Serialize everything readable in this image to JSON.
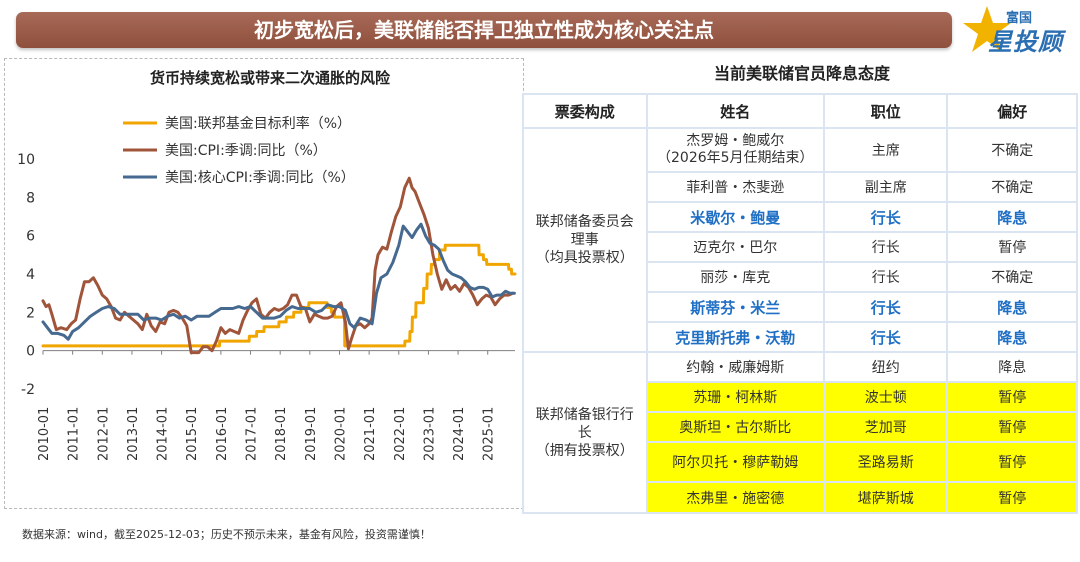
{
  "banner": {
    "title": "初步宽松后，美联储能否捍卫独立性成为核心关注点"
  },
  "logo": {
    "small": "富国",
    "big": "星投顾"
  },
  "chart_data": {
    "type": "line",
    "title": "货币持续宽松或带来二次通胀的风险",
    "xlabel": "",
    "ylabel": "",
    "ylim": [
      -2,
      10
    ],
    "yticks": [
      -2,
      0,
      2,
      4,
      6,
      8,
      10
    ],
    "xlim": [
      2010.0,
      2025.92
    ],
    "xticks": [
      "2010-01",
      "2011-01",
      "2012-01",
      "2013-01",
      "2014-01",
      "2015-01",
      "2016-01",
      "2017-01",
      "2018-01",
      "2019-01",
      "2020-01",
      "2021-01",
      "2022-01",
      "2023-01",
      "2024-01",
      "2025-01"
    ],
    "grid": false,
    "legend": "top-left",
    "series": [
      {
        "name": "美国:联邦基金目标利率（%）",
        "color": "#f0a500",
        "x": [
          2010.0,
          2015.95,
          2015.96,
          2016.95,
          2016.96,
          2017.2,
          2017.21,
          2017.45,
          2017.46,
          2017.95,
          2017.96,
          2018.2,
          2018.21,
          2018.45,
          2018.46,
          2018.7,
          2018.71,
          2018.96,
          2018.97,
          2019.58,
          2019.59,
          2019.72,
          2019.73,
          2019.83,
          2019.84,
          2020.17,
          2020.18,
          2022.2,
          2022.21,
          2022.37,
          2022.38,
          2022.45,
          2022.46,
          2022.57,
          2022.58,
          2022.83,
          2022.84,
          2022.95,
          2022.96,
          2023.09,
          2023.1,
          2023.2,
          2023.21,
          2023.37,
          2023.38,
          2023.56,
          2023.57,
          2024.7,
          2024.71,
          2024.85,
          2024.86,
          2024.96,
          2024.97,
          2025.7,
          2025.71,
          2025.8,
          2025.81,
          2025.92
        ],
        "y": [
          0.25,
          0.25,
          0.5,
          0.5,
          0.75,
          0.75,
          1.0,
          1.0,
          1.25,
          1.25,
          1.5,
          1.5,
          1.75,
          1.75,
          2.0,
          2.0,
          2.25,
          2.25,
          2.5,
          2.5,
          2.25,
          2.25,
          2.0,
          2.0,
          1.75,
          1.75,
          0.25,
          0.25,
          0.5,
          0.5,
          1.0,
          1.0,
          1.75,
          1.75,
          2.5,
          2.5,
          3.25,
          3.25,
          4.0,
          4.0,
          4.5,
          4.5,
          4.75,
          4.75,
          5.25,
          5.25,
          5.5,
          5.5,
          5.0,
          5.0,
          4.75,
          4.75,
          4.5,
          4.5,
          4.25,
          4.25,
          4.0,
          4.0
        ]
      },
      {
        "name": "美国:CPI:季调:同比（%）",
        "color": "#a0543a",
        "x": [
          2010.0,
          2010.1,
          2010.2,
          2010.3,
          2010.45,
          2010.6,
          2010.8,
          2010.95,
          2011.1,
          2011.25,
          2011.4,
          2011.55,
          2011.7,
          2011.85,
          2012.0,
          2012.15,
          2012.3,
          2012.45,
          2012.6,
          2012.75,
          2012.9,
          2013.05,
          2013.2,
          2013.35,
          2013.5,
          2013.65,
          2013.8,
          2013.95,
          2014.1,
          2014.25,
          2014.4,
          2014.55,
          2014.7,
          2014.85,
          2015.0,
          2015.1,
          2015.25,
          2015.4,
          2015.55,
          2015.7,
          2015.85,
          2016.0,
          2016.15,
          2016.3,
          2016.45,
          2016.6,
          2016.75,
          2016.9,
          2017.05,
          2017.2,
          2017.35,
          2017.5,
          2017.65,
          2017.8,
          2017.95,
          2018.1,
          2018.25,
          2018.4,
          2018.55,
          2018.7,
          2018.85,
          2019.0,
          2019.15,
          2019.3,
          2019.45,
          2019.6,
          2019.75,
          2019.9,
          2020.05,
          2020.2,
          2020.3,
          2020.4,
          2020.55,
          2020.7,
          2020.85,
          2021.0,
          2021.1,
          2021.2,
          2021.3,
          2021.45,
          2021.6,
          2021.75,
          2021.9,
          2022.05,
          2022.2,
          2022.35,
          2022.45,
          2022.55,
          2022.7,
          2022.85,
          2023.0,
          2023.15,
          2023.3,
          2023.45,
          2023.6,
          2023.75,
          2023.9,
          2024.05,
          2024.2,
          2024.35,
          2024.5,
          2024.65,
          2024.8,
          2024.95,
          2025.1,
          2025.25,
          2025.4,
          2025.55,
          2025.7,
          2025.85
        ],
        "y": [
          2.6,
          2.3,
          2.4,
          1.9,
          1.1,
          1.2,
          1.1,
          1.4,
          1.6,
          2.7,
          3.6,
          3.6,
          3.8,
          3.4,
          2.9,
          2.7,
          2.3,
          1.7,
          1.6,
          2.0,
          1.8,
          1.6,
          1.4,
          1.1,
          1.9,
          1.3,
          1.0,
          1.5,
          1.4,
          2.0,
          2.1,
          2.0,
          1.7,
          1.3,
          -0.1,
          -0.1,
          -0.1,
          0.2,
          0.2,
          0.0,
          0.5,
          1.2,
          0.9,
          1.1,
          1.0,
          0.9,
          1.6,
          2.1,
          2.5,
          2.7,
          1.9,
          1.7,
          2.0,
          2.2,
          2.1,
          2.2,
          2.4,
          2.9,
          2.9,
          2.3,
          2.2,
          1.5,
          1.9,
          1.8,
          1.7,
          1.7,
          1.8,
          2.3,
          2.5,
          1.5,
          0.1,
          0.6,
          1.3,
          1.4,
          1.2,
          1.4,
          1.7,
          4.2,
          5.0,
          5.4,
          5.3,
          6.2,
          7.0,
          7.5,
          8.5,
          9.0,
          8.5,
          8.3,
          7.7,
          7.1,
          6.4,
          5.0,
          4.0,
          3.2,
          3.7,
          3.2,
          3.4,
          3.1,
          3.5,
          3.3,
          2.9,
          2.4,
          2.7,
          2.9,
          2.8,
          2.4,
          2.7,
          2.9,
          2.9,
          3.0
        ]
      },
      {
        "name": "美国:核心CPI:季调:同比（%）",
        "color": "#466990",
        "x": [
          2010.0,
          2010.15,
          2010.3,
          2010.5,
          2010.7,
          2010.85,
          2011.0,
          2011.2,
          2011.4,
          2011.6,
          2011.8,
          2012.0,
          2012.2,
          2012.4,
          2012.6,
          2012.8,
          2013.0,
          2013.2,
          2013.4,
          2013.6,
          2013.8,
          2014.0,
          2014.2,
          2014.4,
          2014.6,
          2014.8,
          2015.0,
          2015.2,
          2015.4,
          2015.6,
          2015.8,
          2016.0,
          2016.2,
          2016.4,
          2016.6,
          2016.8,
          2017.0,
          2017.2,
          2017.4,
          2017.6,
          2017.8,
          2018.0,
          2018.2,
          2018.4,
          2018.6,
          2018.8,
          2019.0,
          2019.2,
          2019.4,
          2019.6,
          2019.8,
          2020.0,
          2020.2,
          2020.35,
          2020.5,
          2020.7,
          2020.9,
          2021.1,
          2021.25,
          2021.4,
          2021.6,
          2021.8,
          2022.0,
          2022.15,
          2022.3,
          2022.45,
          2022.6,
          2022.75,
          2022.9,
          2023.05,
          2023.2,
          2023.35,
          2023.5,
          2023.65,
          2023.8,
          2023.95,
          2024.1,
          2024.25,
          2024.4,
          2024.55,
          2024.7,
          2024.85,
          2025.0,
          2025.15,
          2025.3,
          2025.45,
          2025.6,
          2025.75,
          2025.9
        ],
        "y": [
          1.5,
          1.2,
          0.9,
          0.9,
          0.8,
          0.6,
          1.0,
          1.2,
          1.5,
          1.8,
          2.0,
          2.2,
          2.3,
          2.2,
          1.9,
          1.9,
          1.9,
          1.9,
          1.6,
          1.7,
          1.7,
          1.6,
          1.8,
          1.9,
          1.7,
          1.8,
          1.6,
          1.8,
          1.8,
          1.8,
          2.0,
          2.2,
          2.2,
          2.2,
          2.3,
          2.2,
          2.3,
          2.0,
          1.7,
          1.7,
          1.7,
          1.8,
          2.1,
          2.3,
          2.2,
          2.2,
          2.2,
          2.0,
          2.1,
          2.4,
          2.3,
          2.3,
          2.1,
          1.4,
          1.2,
          1.7,
          1.6,
          1.4,
          3.0,
          3.8,
          4.0,
          4.6,
          5.5,
          6.5,
          6.2,
          5.9,
          6.3,
          6.6,
          6.0,
          5.6,
          5.5,
          5.3,
          4.7,
          4.2,
          4.0,
          3.9,
          3.8,
          3.6,
          3.3,
          3.2,
          3.3,
          3.3,
          3.2,
          2.8,
          2.9,
          2.9,
          3.1,
          3.0,
          3.0
        ]
      }
    ]
  },
  "table": {
    "title": "当前美联储官员降息态度",
    "headers": [
      "票委构成",
      "姓名",
      "职位",
      "偏好"
    ],
    "group1_lines": [
      "联邦储备委员会",
      "理事",
      "（均具投票权）"
    ],
    "group2_lines": [
      "联邦储备银行行",
      "长",
      "（拥有投票权）"
    ],
    "rows": [
      {
        "name": [
          "杰罗姆・鲍威尔",
          "（2026年5月任期结束）"
        ],
        "position": "主席",
        "preference": "不确定"
      },
      {
        "name": [
          "菲利普・杰斐逊"
        ],
        "position": "副主席",
        "preference": "不确定"
      },
      {
        "name": [
          "米歇尔・鲍曼"
        ],
        "position": "行长",
        "preference": "降息"
      },
      {
        "name": [
          "迈克尔・巴尔"
        ],
        "position": "行长",
        "preference": "暂停"
      },
      {
        "name": [
          "丽莎・库克"
        ],
        "position": "行长",
        "preference": "不确定"
      },
      {
        "name": [
          "斯蒂芬・米兰"
        ],
        "position": "行长",
        "preference": "降息"
      },
      {
        "name": [
          "克里斯托弗・沃勒"
        ],
        "position": "行长",
        "preference": "降息"
      },
      {
        "name": [
          "约翰・威廉姆斯"
        ],
        "position": "纽约",
        "preference": "降息"
      },
      {
        "name": [
          "苏珊・柯林斯"
        ],
        "position": "波士顿",
        "preference": "暂停"
      },
      {
        "name": [
          "奥斯坦・古尔斯比"
        ],
        "position": "芝加哥",
        "preference": "暂停"
      },
      {
        "name": [
          "阿尔贝托・穆萨勒姆"
        ],
        "position": "圣路易斯",
        "preference": "暂停"
      },
      {
        "name": [
          "杰弗里・施密德"
        ],
        "position": "堪萨斯城",
        "preference": "暂停"
      }
    ],
    "colors": {
      "highlight": "#ffff00",
      "emphasis_text": "#1f6fc5",
      "border": "#dbe5f1"
    }
  },
  "footer": {
    "source": "数据来源：wind，截至2025-12-03；历史不预示未来，基金有风险，投资需谨慎！"
  }
}
